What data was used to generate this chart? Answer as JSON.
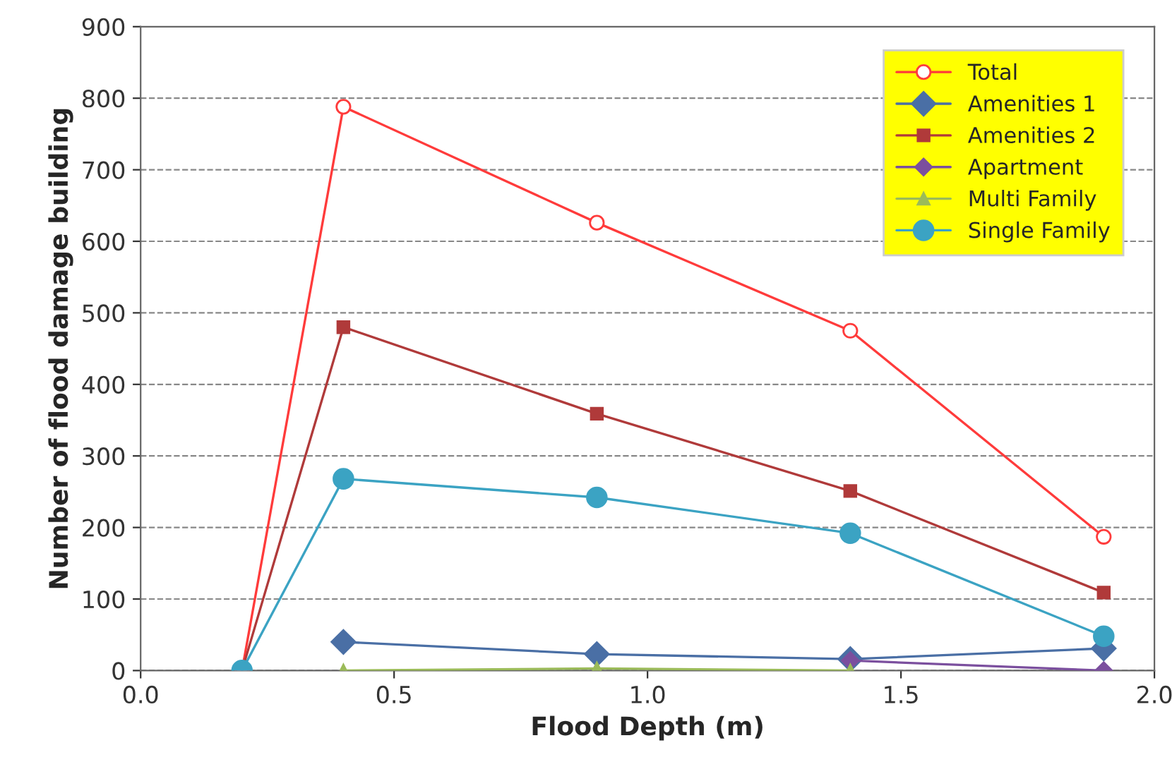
{
  "chart_data": {
    "type": "line",
    "xlabel": "Flood Depth (m)",
    "ylabel": "Number of flood damage building",
    "x": [
      0.2,
      0.4,
      0.9,
      1.4,
      1.9
    ],
    "xlim": [
      0,
      2
    ],
    "xticks": [
      {
        "value": 0,
        "label": "0.0"
      },
      {
        "value": 0.5,
        "label": "0.5"
      },
      {
        "value": 1,
        "label": "1.0"
      },
      {
        "value": 1.5,
        "label": "1.5"
      },
      {
        "value": 2,
        "label": "2.0"
      }
    ],
    "ylim": [
      0,
      900
    ],
    "yticks": [
      0,
      100,
      200,
      300,
      400,
      500,
      600,
      700,
      800,
      900
    ],
    "grid": "y",
    "legend": "top right",
    "series": [
      {
        "name": "Total",
        "color": "#ff3b3b",
        "marker": "circle",
        "values": [
          0,
          788,
          626,
          475,
          187
        ]
      },
      {
        "name": "Amenities 1",
        "color": "#4a6fa5",
        "marker": "diamond",
        "values": [
          null,
          40,
          23,
          16,
          31
        ]
      },
      {
        "name": "Amenities 2",
        "color": "#b03a3a",
        "marker": "square",
        "values": [
          0,
          480,
          359,
          251,
          109
        ]
      },
      {
        "name": "Apartment",
        "color": "#7b4f9e",
        "marker": "diamond",
        "values": [
          null,
          null,
          null,
          14,
          0
        ]
      },
      {
        "name": "Multi Family",
        "color": "#9bbb59",
        "marker": "triangle",
        "values": [
          null,
          0,
          3,
          0,
          null
        ]
      },
      {
        "name": "Single Family",
        "color": "#3ba3c3",
        "marker": "circle",
        "values": [
          0,
          268,
          242,
          192,
          48
        ]
      }
    ]
  }
}
